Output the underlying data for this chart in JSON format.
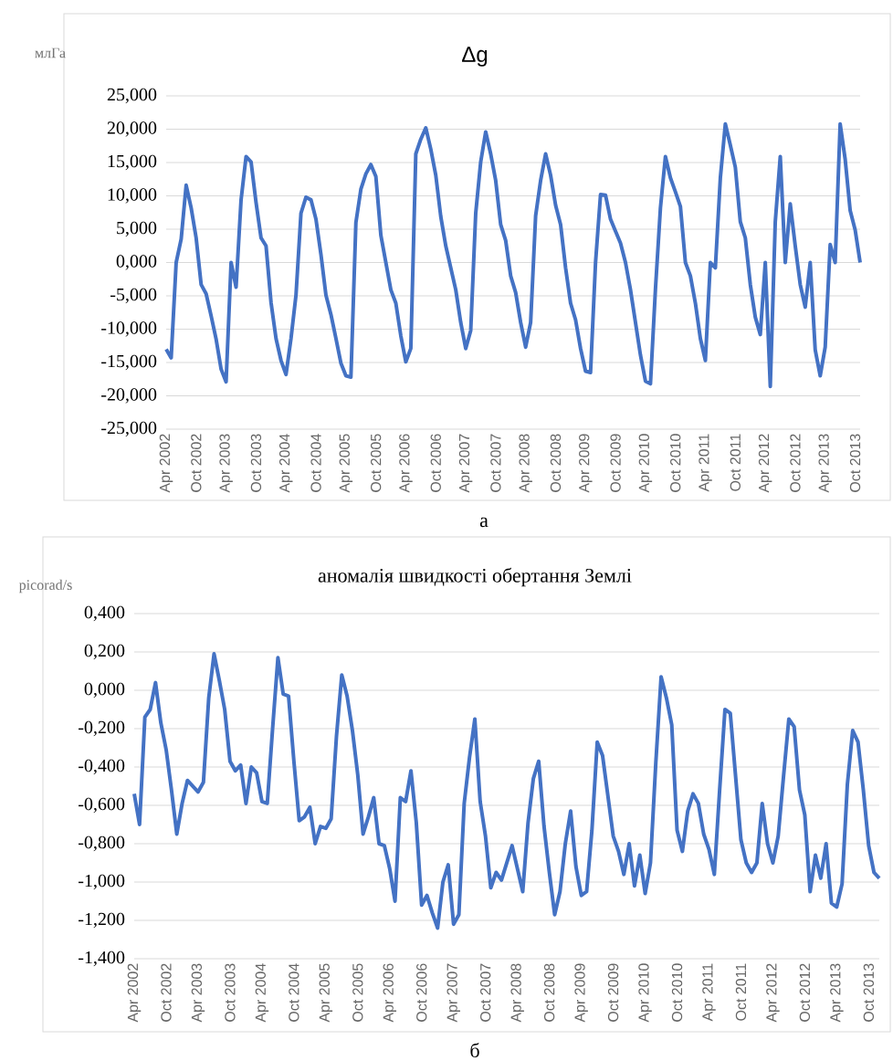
{
  "chart_data": [
    {
      "type": "line",
      "title": "Δg",
      "ylabel": "млГа",
      "annotations": [
        "а"
      ],
      "color": "#4472c4",
      "grid": "y",
      "ylim": [
        -25,
        25
      ],
      "yticks": [
        {
          "value": -25,
          "label": "-25,000"
        },
        {
          "value": -20,
          "label": "-20,000"
        },
        {
          "value": -15,
          "label": "-15,000"
        },
        {
          "value": -10,
          "label": "-10,000"
        },
        {
          "value": -5,
          "label": "-5,000"
        },
        {
          "value": 0,
          "label": "0,000"
        },
        {
          "value": 5,
          "label": "5,000"
        },
        {
          "value": 10,
          "label": "10,000"
        },
        {
          "value": 15,
          "label": "15,000"
        },
        {
          "value": 20,
          "label": "20,000"
        },
        {
          "value": 25,
          "label": "25,000"
        }
      ],
      "categories": [
        "Apr 2002",
        null,
        null,
        null,
        null,
        null,
        "Oct 2002",
        null,
        null,
        null,
        null,
        null,
        "Apr 2003",
        null,
        null,
        null,
        null,
        null,
        "Oct 2003",
        null,
        null,
        null,
        null,
        null,
        "Apr 2004",
        null,
        null,
        null,
        null,
        null,
        "Oct 2004",
        null,
        null,
        null,
        null,
        null,
        "Apr 2005",
        null,
        null,
        null,
        null,
        null,
        "Oct 2005",
        null,
        null,
        null,
        null,
        null,
        "Apr 2006",
        null,
        null,
        null,
        null,
        null,
        "Oct 2006",
        null,
        null,
        null,
        null,
        null,
        "Apr 2007",
        null,
        null,
        null,
        null,
        null,
        "Oct 2007",
        null,
        null,
        null,
        null,
        null,
        "Apr 2008",
        null,
        null,
        null,
        null,
        null,
        "Oct 2008",
        null,
        null,
        null,
        null,
        null,
        "Apr 2009",
        null,
        null,
        null,
        null,
        null,
        "Oct 2009",
        null,
        null,
        null,
        null,
        null,
        "Apr 2010",
        null,
        null,
        null,
        null,
        null,
        "Oct 2010",
        null,
        null,
        null,
        null,
        null,
        "Apr 2011",
        null,
        null,
        null,
        null,
        null,
        "Oct 2011",
        null,
        null,
        null,
        null,
        null,
        "Apr 2012",
        null,
        null,
        null,
        null,
        null,
        "Oct 2012",
        null,
        null,
        null,
        null,
        null,
        "Apr 2013",
        null,
        null,
        null,
        null,
        null,
        "Oct 2013",
        null
      ],
      "values": [
        -13.0,
        -14.3,
        0.0,
        3.5,
        11.6,
        8.2,
        3.7,
        -3.3,
        -4.7,
        -8.0,
        -11.5,
        -16.0,
        -17.9,
        0.0,
        -3.7,
        9.4,
        15.9,
        15.1,
        9.0,
        3.7,
        2.5,
        -6.0,
        -11.4,
        -14.7,
        -16.8,
        -11.4,
        -4.9,
        7.4,
        9.8,
        9.4,
        6.5,
        1.2,
        -4.9,
        -7.8,
        -11.4,
        -15.1,
        -17.0,
        -17.2,
        6.0,
        11.0,
        13.3,
        14.7,
        12.9,
        4.1,
        0.0,
        -4.1,
        -6.1,
        -11.0,
        -14.9,
        -12.9,
        16.3,
        18.5,
        20.2,
        17.0,
        13.1,
        6.9,
        2.5,
        -0.8,
        -4.1,
        -9.0,
        -12.9,
        -10.2,
        7.4,
        15.1,
        19.6,
        16.3,
        12.3,
        5.7,
        3.3,
        -2.0,
        -4.5,
        -9.0,
        -12.7,
        -9.0,
        7.0,
        12.3,
        16.3,
        13.1,
        8.6,
        5.7,
        -0.8,
        -6.1,
        -8.6,
        -12.9,
        -16.3,
        -16.5,
        0.0,
        10.2,
        10.1,
        6.5,
        4.7,
        2.9,
        0.0,
        -4.1,
        -9.0,
        -13.9,
        -17.8,
        -18.2,
        -4.0,
        8.2,
        15.9,
        12.7,
        10.6,
        8.4,
        0.0,
        -2.0,
        -6.1,
        -11.4,
        -14.7,
        0.0,
        -0.8,
        12.7,
        20.8,
        17.6,
        14.3,
        6.1,
        3.7,
        -3.3,
        -8.2,
        -10.8,
        0.0,
        -18.6,
        6.1,
        15.9,
        0.0,
        8.8,
        2.5,
        -3.3,
        -6.7,
        0.0,
        -13.1,
        -17.0,
        -12.7,
        2.7,
        0.0,
        20.8,
        15.5,
        7.8,
        4.9,
        0.0
      ]
    },
    {
      "type": "line",
      "title": "аномалія швидкості обертання Землі",
      "ylabel": "picorad/s",
      "annotations": [
        "б"
      ],
      "color": "#4472c4",
      "grid": "y",
      "ylim": [
        -1.4,
        0.4
      ],
      "yticks": [
        {
          "value": -1.4,
          "label": "-1,400"
        },
        {
          "value": -1.2,
          "label": "-1,200"
        },
        {
          "value": -1.0,
          "label": "-1,000"
        },
        {
          "value": -0.8,
          "label": "-0,800"
        },
        {
          "value": -0.6,
          "label": "-0,600"
        },
        {
          "value": -0.4,
          "label": "-0,400"
        },
        {
          "value": -0.2,
          "label": "-0,200"
        },
        {
          "value": 0,
          "label": "0,000"
        },
        {
          "value": 0.2,
          "label": "0,200"
        },
        {
          "value": 0.4,
          "label": "0,400"
        }
      ],
      "categories": [
        "Apr 2002",
        null,
        null,
        null,
        null,
        null,
        "Oct 2002",
        null,
        null,
        null,
        null,
        null,
        "Apr 2003",
        null,
        null,
        null,
        null,
        null,
        "Oct 2003",
        null,
        null,
        null,
        null,
        null,
        "Apr 2004",
        null,
        null,
        null,
        null,
        null,
        "Oct 2004",
        null,
        null,
        null,
        null,
        null,
        "Apr 2005",
        null,
        null,
        null,
        null,
        null,
        "Oct 2005",
        null,
        null,
        null,
        null,
        null,
        "Apr 2006",
        null,
        null,
        null,
        null,
        null,
        "Oct 2006",
        null,
        null,
        null,
        null,
        null,
        "Apr 2007",
        null,
        null,
        null,
        null,
        null,
        "Oct 2007",
        null,
        null,
        null,
        null,
        null,
        "Apr 2008",
        null,
        null,
        null,
        null,
        null,
        "Oct 2008",
        null,
        null,
        null,
        null,
        null,
        "Apr 2009",
        null,
        null,
        null,
        null,
        null,
        "Oct 2009",
        null,
        null,
        null,
        null,
        null,
        "Apr 2010",
        null,
        null,
        null,
        null,
        null,
        "Oct 2010",
        null,
        null,
        null,
        null,
        null,
        "Apr 2011",
        null,
        null,
        null,
        null,
        null,
        "Oct 2011",
        null,
        null,
        null,
        null,
        null,
        "Apr 2012",
        null,
        null,
        null,
        null,
        null,
        "Oct 2012",
        null,
        null,
        null,
        null,
        null,
        "Apr 2013",
        null,
        null,
        null,
        null,
        null,
        "Oct 2013",
        null,
        null
      ],
      "values": [
        -0.54,
        -0.7,
        -0.14,
        -0.1,
        0.04,
        -0.17,
        -0.31,
        -0.52,
        -0.75,
        -0.59,
        -0.47,
        -0.5,
        -0.53,
        -0.48,
        -0.04,
        0.19,
        0.05,
        -0.1,
        -0.37,
        -0.42,
        -0.39,
        -0.59,
        -0.4,
        -0.43,
        -0.58,
        -0.59,
        -0.2,
        0.17,
        -0.02,
        -0.03,
        -0.37,
        -0.68,
        -0.66,
        -0.61,
        -0.8,
        -0.71,
        -0.72,
        -0.67,
        -0.24,
        0.08,
        -0.03,
        -0.21,
        -0.44,
        -0.75,
        -0.66,
        -0.56,
        -0.8,
        -0.81,
        -0.93,
        -1.1,
        -0.56,
        -0.58,
        -0.42,
        -0.69,
        -1.12,
        -1.07,
        -1.16,
        -1.24,
        -1.0,
        -0.91,
        -1.22,
        -1.17,
        -0.59,
        -0.35,
        -0.15,
        -0.58,
        -0.76,
        -1.03,
        -0.95,
        -0.99,
        -0.9,
        -0.81,
        -0.93,
        -1.05,
        -0.69,
        -0.46,
        -0.37,
        -0.71,
        -0.95,
        -1.17,
        -1.05,
        -0.8,
        -0.63,
        -0.92,
        -1.07,
        -1.05,
        -0.73,
        -0.27,
        -0.34,
        -0.55,
        -0.76,
        -0.84,
        -0.96,
        -0.8,
        -1.02,
        -0.86,
        -1.06,
        -0.9,
        -0.38,
        0.07,
        -0.04,
        -0.18,
        -0.73,
        -0.84,
        -0.63,
        -0.54,
        -0.59,
        -0.75,
        -0.83,
        -0.96,
        -0.52,
        -0.1,
        -0.12,
        -0.45,
        -0.78,
        -0.9,
        -0.95,
        -0.9,
        -0.59,
        -0.8,
        -0.9,
        -0.76,
        -0.45,
        -0.15,
        -0.19,
        -0.52,
        -0.65,
        -1.05,
        -0.86,
        -0.98,
        -0.8,
        -1.11,
        -1.13,
        -1.01,
        -0.49,
        -0.21,
        -0.27,
        -0.52,
        -0.81,
        -0.95,
        -0.98
      ]
    }
  ]
}
